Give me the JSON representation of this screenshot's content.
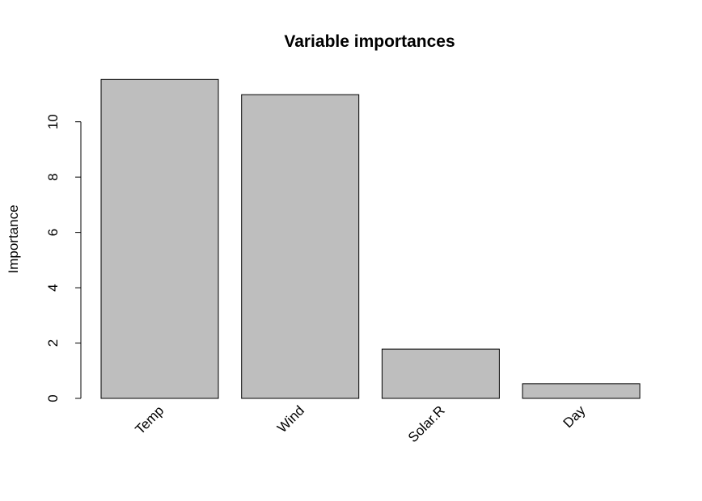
{
  "chart_data": {
    "type": "bar",
    "title": "Variable importances",
    "xlabel": "",
    "ylabel": "Importance",
    "categories": [
      "Temp",
      "Wind",
      "Solar.R",
      "Day"
    ],
    "values": [
      11.53,
      10.98,
      1.78,
      0.53
    ],
    "yticks": [
      0,
      2,
      4,
      6,
      8,
      10
    ],
    "ylim": [
      0,
      12.1
    ],
    "grid": false,
    "bar_color": "#bebebe",
    "border_color": "#000000"
  }
}
